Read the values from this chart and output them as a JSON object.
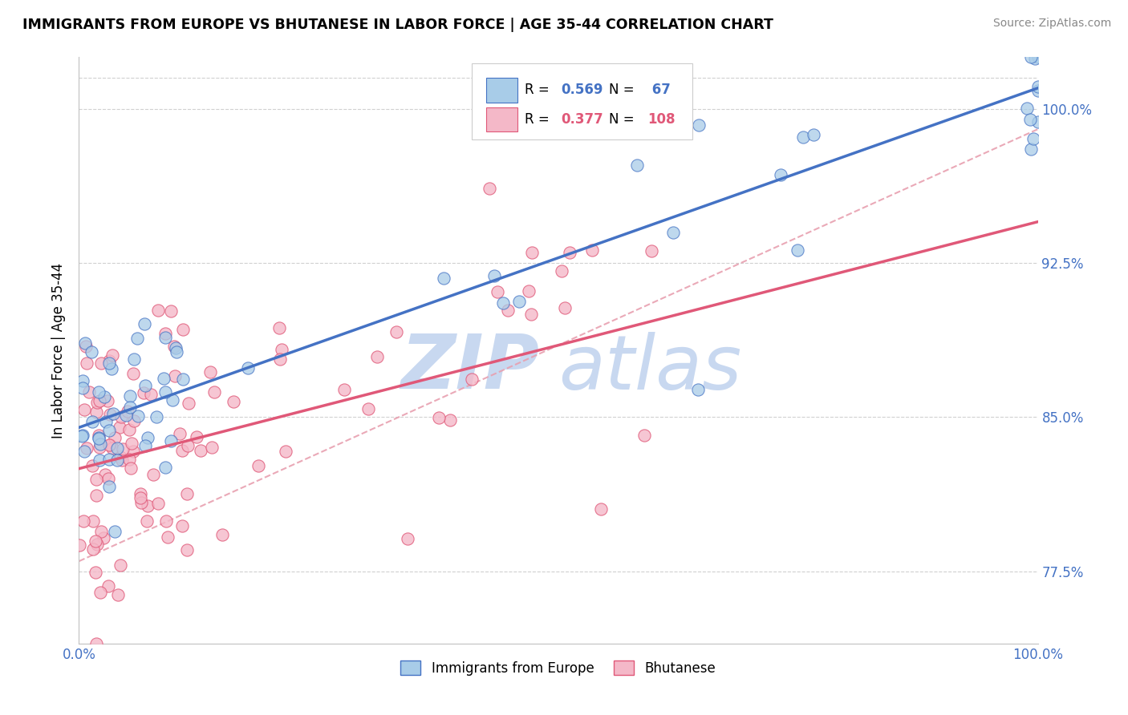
{
  "title": "IMMIGRANTS FROM EUROPE VS BHUTANESE IN LABOR FORCE | AGE 35-44 CORRELATION CHART",
  "source": "Source: ZipAtlas.com",
  "ylabel": "In Labor Force | Age 35-44",
  "color_blue": "#a8cce8",
  "color_blue_edge": "#4472c4",
  "color_pink": "#f4b8c8",
  "color_pink_edge": "#e05878",
  "color_trendline_blue": "#4472c4",
  "color_trendline_pink": "#e05878",
  "color_dashed": "#e8a0b0",
  "color_axis_label": "#4472c4",
  "color_grid": "#d0d0d0",
  "watermark_color": "#c8d8f0",
  "xlim": [
    0.0,
    1.0
  ],
  "ylim": [
    0.74,
    1.025
  ],
  "ytick_vals": [
    0.775,
    0.85,
    0.925,
    1.0
  ],
  "ytick_labels": [
    "77.5%",
    "85.0%",
    "92.5%",
    "100.0%"
  ],
  "xtick_vals": [
    0.0,
    1.0
  ],
  "xtick_labels": [
    "0.0%",
    "100.0%"
  ],
  "blue_trend_x": [
    0.0,
    1.0
  ],
  "blue_trend_y": [
    0.845,
    1.01
  ],
  "pink_trend_x": [
    0.0,
    1.0
  ],
  "pink_trend_y": [
    0.825,
    0.945
  ],
  "dashed_trend_x": [
    0.0,
    1.0
  ],
  "dashed_trend_y": [
    0.78,
    0.99
  ],
  "legend_r_blue": "0.569",
  "legend_n_blue": "67",
  "legend_r_pink": "0.377",
  "legend_n_pink": "108"
}
